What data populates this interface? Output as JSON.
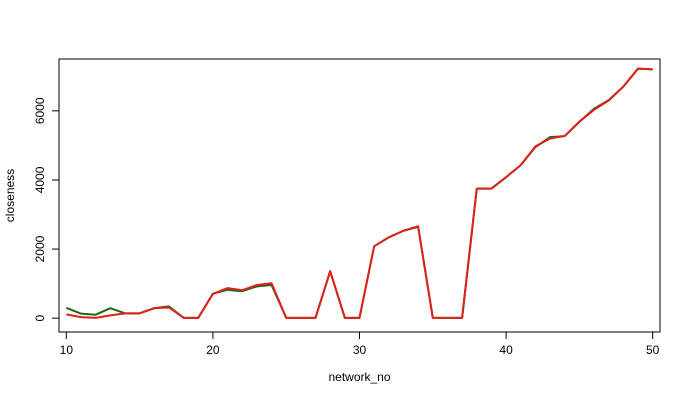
{
  "chart_data": {
    "type": "line",
    "xlabel": "network_no",
    "ylabel": "closeness",
    "xlim": [
      9.5,
      50.5
    ],
    "ylim": [
      -400,
      7500
    ],
    "xticks": [
      10,
      20,
      30,
      40,
      50
    ],
    "yticks": [
      0,
      2000,
      4000,
      6000
    ],
    "grid": false,
    "x": [
      10,
      11,
      12,
      13,
      14,
      15,
      16,
      17,
      18,
      19,
      20,
      21,
      22,
      23,
      24,
      25,
      26,
      27,
      28,
      29,
      30,
      31,
      32,
      33,
      34,
      35,
      36,
      37,
      38,
      39,
      40,
      41,
      42,
      43,
      44,
      45,
      46,
      47,
      48,
      49,
      50
    ],
    "series": [
      {
        "color": "#1a6b1a",
        "values": [
          300,
          130,
          100,
          290,
          140,
          140,
          290,
          340,
          10,
          10,
          710,
          820,
          780,
          920,
          960,
          10,
          10,
          10,
          1360,
          10,
          10,
          2080,
          2340,
          2530,
          2640,
          10,
          10,
          10,
          3750,
          3750,
          4080,
          4430,
          4950,
          5240,
          5270,
          5680,
          6060,
          6310,
          6700,
          7220,
          7200
        ]
      },
      {
        "color": "#e0201a",
        "values": [
          110,
          30,
          10,
          80,
          140,
          140,
          290,
          310,
          10,
          10,
          700,
          870,
          810,
          960,
          1010,
          10,
          10,
          10,
          1360,
          10,
          10,
          2080,
          2340,
          2530,
          2660,
          10,
          10,
          10,
          3750,
          3750,
          4080,
          4430,
          4970,
          5200,
          5270,
          5690,
          6030,
          6300,
          6700,
          7220,
          7200
        ]
      }
    ]
  }
}
